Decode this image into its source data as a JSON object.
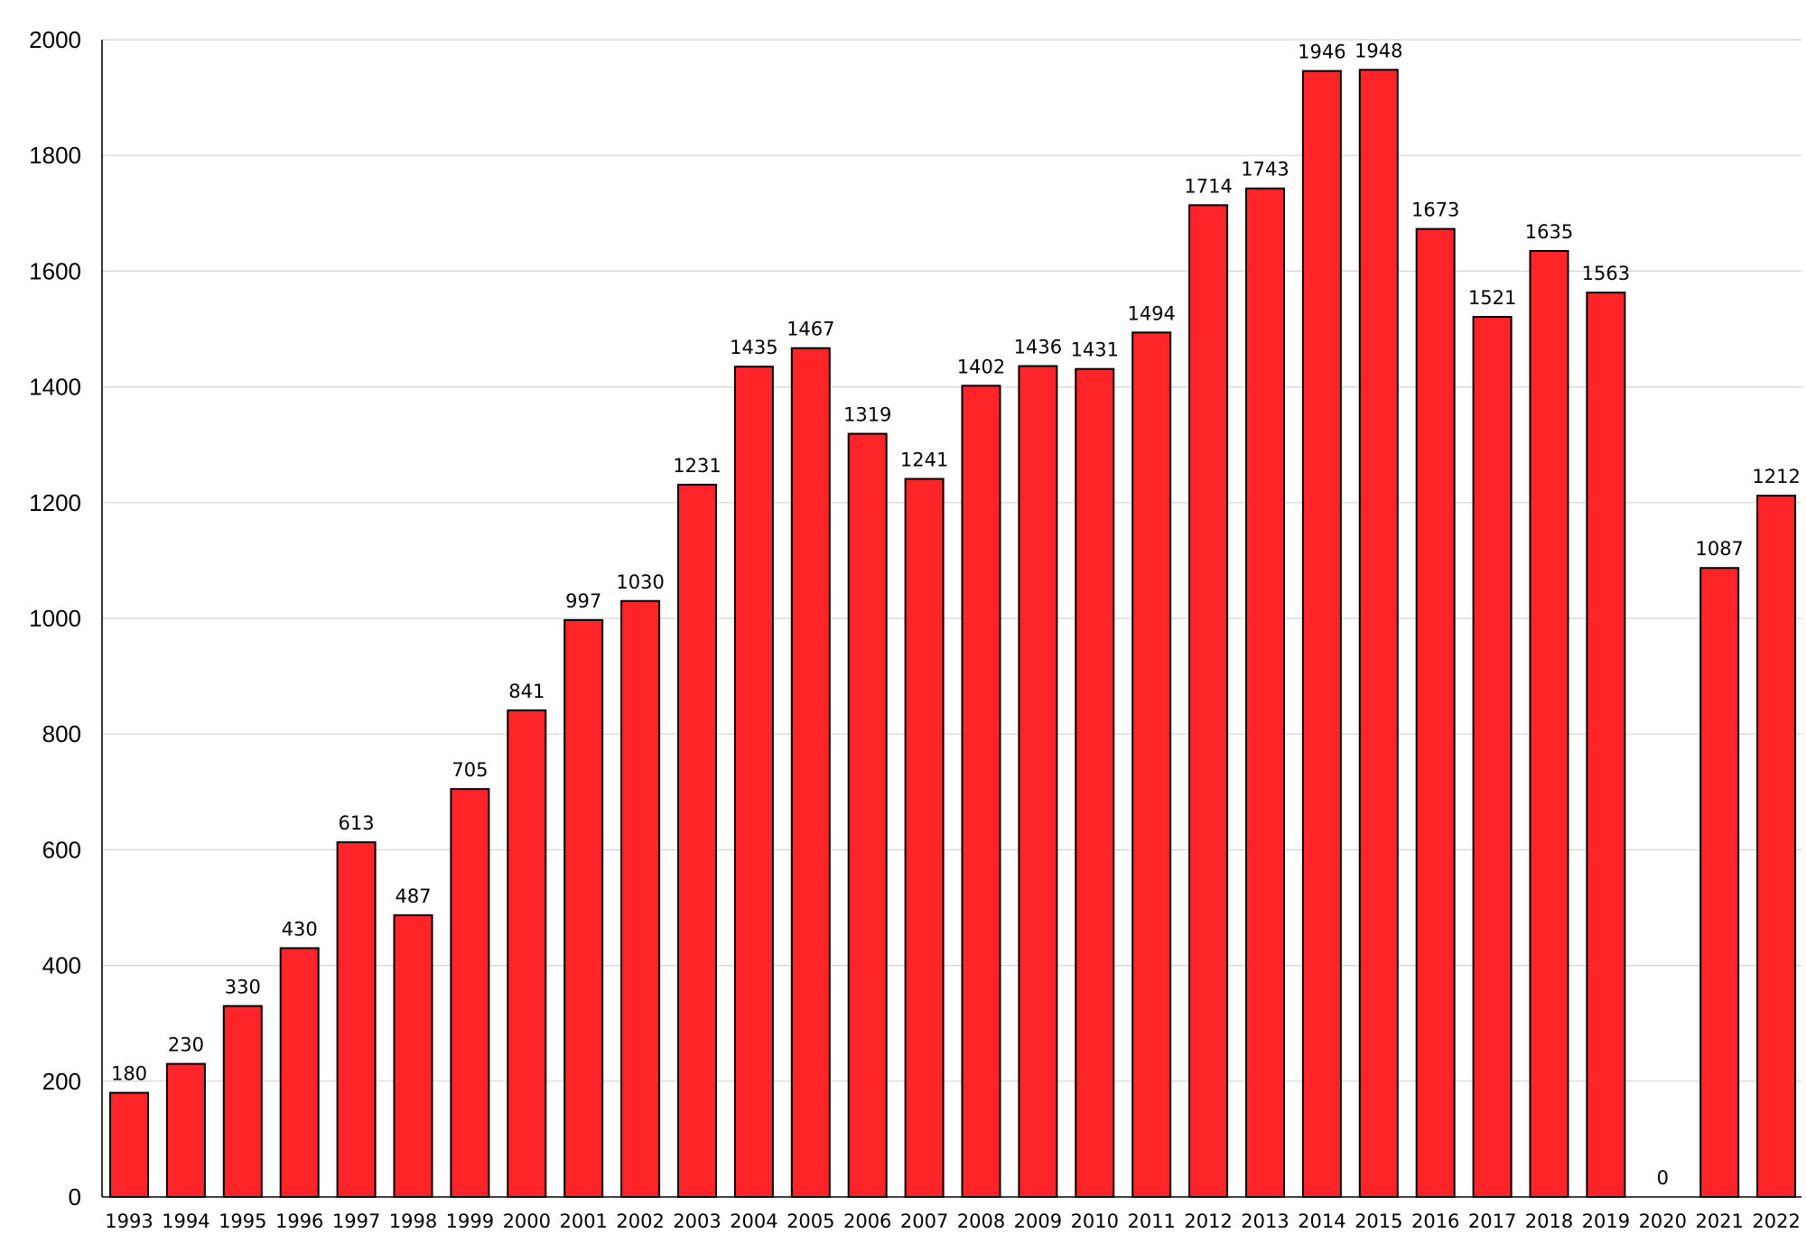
{
  "chart_data": {
    "type": "bar",
    "title": "",
    "xlabel": "",
    "ylabel": "",
    "ylim": [
      0,
      2000
    ],
    "yticks": [
      0,
      200,
      400,
      600,
      800,
      1000,
      1200,
      1400,
      1600,
      1800,
      2000
    ],
    "grid": true,
    "legend": "none",
    "bar_color": "#ff2428",
    "bar_edge_color": "#000000",
    "categories": [
      "1993",
      "1994",
      "1995",
      "1996",
      "1997",
      "1998",
      "1999",
      "2000",
      "2001",
      "2002",
      "2003",
      "2004",
      "2005",
      "2006",
      "2007",
      "2008",
      "2009",
      "2010",
      "2011",
      "2012",
      "2013",
      "2014",
      "2015",
      "2016",
      "2017",
      "2018",
      "2019",
      "2020",
      "2021",
      "2022"
    ],
    "values": [
      180,
      230,
      330,
      430,
      613,
      487,
      705,
      841,
      997,
      1030,
      1231,
      1435,
      1467,
      1319,
      1241,
      1402,
      1436,
      1431,
      1494,
      1714,
      1743,
      1946,
      1948,
      1673,
      1521,
      1635,
      1563,
      0,
      1087,
      1212
    ],
    "data_labels": [
      "180",
      "230",
      "330",
      "430",
      "613",
      "487",
      "705",
      "841",
      "997",
      "1030",
      "1231",
      "1435",
      "1467",
      "1319",
      "1241",
      "1402",
      "1436",
      "1431",
      "1494",
      "1714",
      "1743",
      "1946",
      "1948",
      "1673",
      "1521",
      "1635",
      "1563",
      "0",
      "1087",
      "1212"
    ]
  }
}
